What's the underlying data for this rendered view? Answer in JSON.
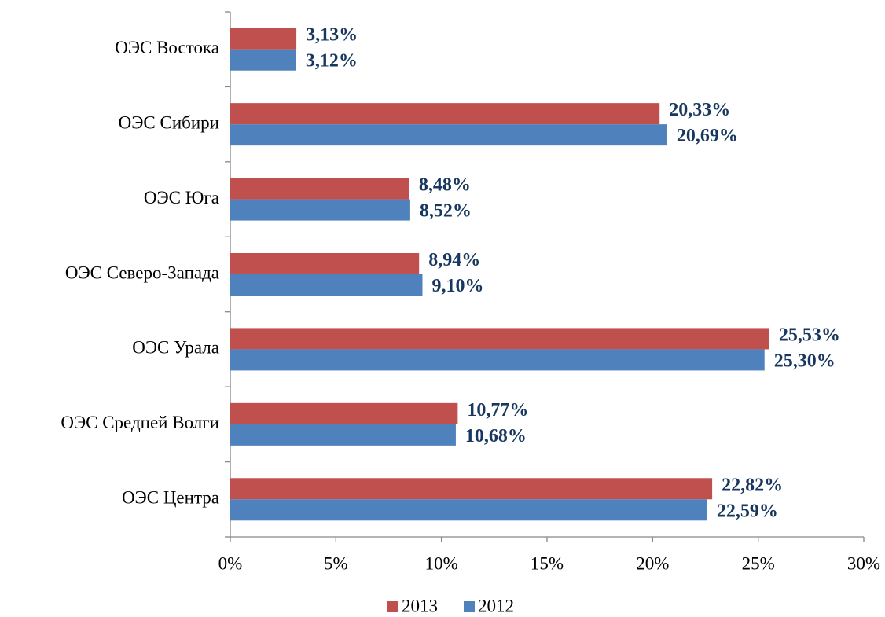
{
  "chart_data": {
    "type": "bar",
    "orientation": "horizontal",
    "categories": [
      "ОЭС Востока",
      "ОЭС Сибири",
      "ОЭС Юга",
      "ОЭС Северо-Запада",
      "ОЭС Урала",
      "ОЭС Средней Волги",
      "ОЭС Центра"
    ],
    "series": [
      {
        "name": "2013",
        "color": "#c0504d",
        "values": [
          3.13,
          20.33,
          8.48,
          8.94,
          25.53,
          10.77,
          22.82
        ],
        "value_labels": [
          "3,13%",
          "20,33%",
          "8,48%",
          "8,94%",
          "25,53%",
          "10,77%",
          "22,82%"
        ]
      },
      {
        "name": "2012",
        "color": "#4f81bd",
        "values": [
          3.12,
          20.69,
          8.52,
          9.1,
          25.3,
          10.68,
          22.59
        ],
        "value_labels": [
          "3,12%",
          "20,69%",
          "8,52%",
          "9,10%",
          "25,30%",
          "10,68%",
          "22,59%"
        ]
      }
    ],
    "xlim": [
      0,
      30
    ],
    "xticks": [
      {
        "value": 0,
        "label": "0%"
      },
      {
        "value": 5,
        "label": "5%"
      },
      {
        "value": 10,
        "label": "10%"
      },
      {
        "value": 15,
        "label": "15%"
      },
      {
        "value": 20,
        "label": "20%"
      },
      {
        "value": 25,
        "label": "25%"
      },
      {
        "value": 30,
        "label": "30%"
      }
    ],
    "grid": false,
    "legend": "bottom"
  }
}
